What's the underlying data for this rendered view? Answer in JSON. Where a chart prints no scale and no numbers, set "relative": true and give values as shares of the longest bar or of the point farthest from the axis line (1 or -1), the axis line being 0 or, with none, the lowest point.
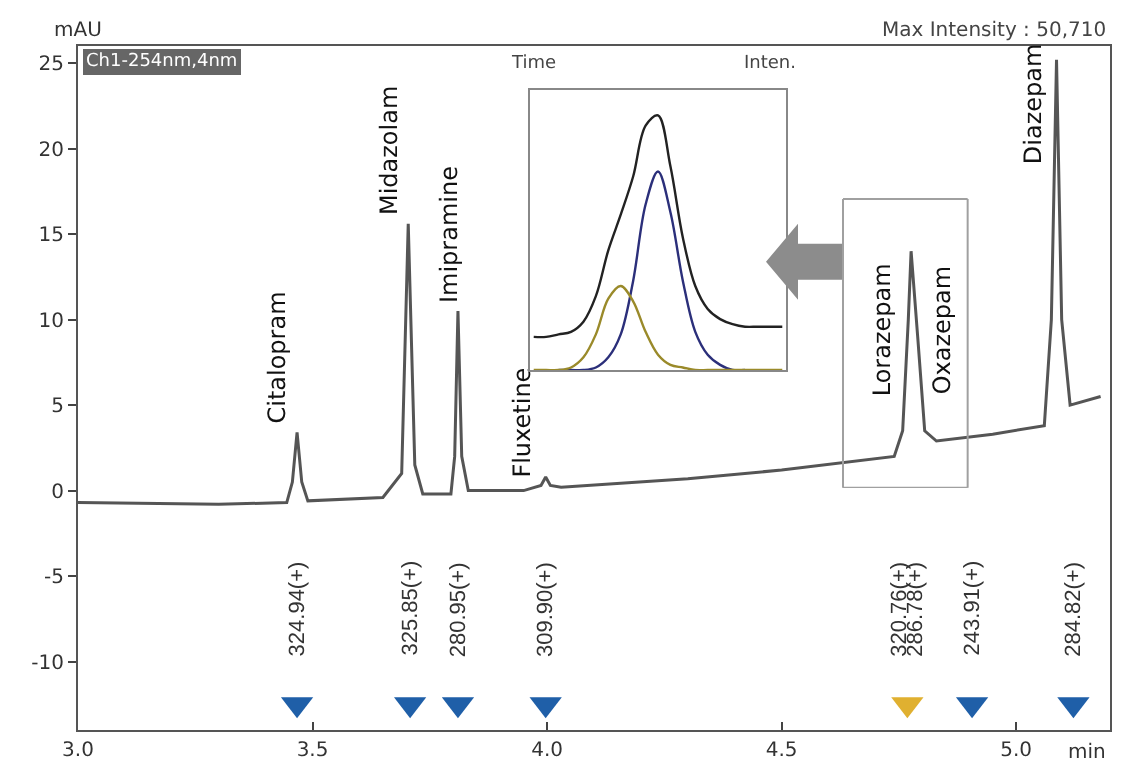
{
  "chart_data": [
    {
      "type": "line",
      "ylabel": "mAU",
      "xlabel": "min",
      "xlim": [
        3.0,
        5.2
      ],
      "xticks": [
        {
          "value": 3.0,
          "label": "3.0"
        },
        3.5,
        {
          "value": 4.0,
          "label": "4.0"
        },
        4.5,
        {
          "value": 5.0,
          "label": "5.0"
        }
      ],
      "ylim": [
        -14,
        26
      ],
      "yticks": [
        -10,
        -5,
        0,
        5,
        10,
        15,
        20,
        25
      ],
      "grid": false,
      "annotations": [
        "Ch1-254nm,4nm",
        "Time",
        "Inten.",
        "Max Intensity : 50,710",
        {
          "text": "Citalopram",
          "x": 3.467,
          "y": 3.4
        },
        {
          "text": "Midazolam",
          "x": 3.704,
          "y": 15.6
        },
        {
          "text": "Imipramine",
          "x": 3.81,
          "y": 10.5
        },
        {
          "text": "Fluxetine",
          "x": 3.997,
          "y": 0.8
        },
        {
          "text": "Lorazepam",
          "x": 4.776,
          "y": 14.0
        },
        {
          "text": "Oxazepam",
          "x": 4.776,
          "y": 14.0
        },
        {
          "text": "Diazepam",
          "x": 5.086,
          "y": 25.2
        },
        {
          "text": "324.94(+)",
          "x": 3.467,
          "y": -12.5
        },
        {
          "text": "325.85(+)",
          "x": 3.708,
          "y": -12.5
        },
        {
          "text": "280.95(+)",
          "x": 3.81,
          "y": -12.5
        },
        {
          "text": "309.90(+)",
          "x": 3.997,
          "y": -12.5
        },
        {
          "text": "320.76(+)",
          "x": 4.768,
          "y": -12.5
        },
        {
          "text": "286.78(+)",
          "x": 4.768,
          "y": -12.5
        },
        {
          "text": "243.91(+)",
          "x": 4.906,
          "y": -12.5
        },
        {
          "text": "284.82(+)",
          "x": 5.122,
          "y": -12.5
        }
      ],
      "series": [
        {
          "color": "#555555",
          "marker": "none",
          "x": [
            3.0,
            3.3,
            3.445,
            3.457,
            3.467,
            3.477,
            3.49,
            3.65,
            3.69,
            3.704,
            3.718,
            3.735,
            3.795,
            3.803,
            3.81,
            3.818,
            3.832,
            3.95,
            3.987,
            3.997,
            4.007,
            4.03,
            4.3,
            4.5,
            4.74,
            4.758,
            4.77,
            4.776,
            4.79,
            4.805,
            4.83,
            4.95,
            5.06,
            5.075,
            5.086,
            5.097,
            5.115,
            5.18
          ],
          "values": [
            -0.7,
            -0.8,
            -0.7,
            0.5,
            3.4,
            0.5,
            -0.6,
            -0.4,
            1,
            15.6,
            1.5,
            -0.2,
            -0.2,
            2,
            10.5,
            2,
            0,
            0,
            0.3,
            0.8,
            0.3,
            0.2,
            0.7,
            1.2,
            2.0,
            3.5,
            10,
            14.0,
            9,
            3.5,
            2.9,
            3.3,
            3.8,
            10,
            25.2,
            10,
            5.0,
            5.5
          ]
        },
        {
          "type": "scatter",
          "marker": "triangle",
          "x": [
            3.467,
            3.708,
            3.81,
            3.997,
            4.768,
            4.906,
            5.122
          ],
          "values": [
            -12.5,
            -12.5,
            -12.5,
            -12.5,
            -12.5,
            -12.5,
            -12.5
          ],
          "colors": [
            "#1f5fa8",
            "#1f5fa8",
            "#1f5fa8",
            "#1f5fa8",
            "#e0b030",
            "#1f5fa8",
            "#1f5fa8"
          ]
        }
      ]
    },
    {
      "type": "line",
      "relative": true,
      "categories": [
        null,
        null,
        null,
        null,
        null,
        null,
        null,
        null,
        null,
        null,
        null,
        null,
        null,
        null,
        null,
        null,
        null,
        null,
        null,
        null,
        null
      ],
      "series": [
        {
          "color": "#222222",
          "values": [
            0.13,
            0.13,
            0.14,
            0.15,
            0.19,
            0.29,
            0.47,
            0.61,
            0.76,
            0.96,
            1.0,
            0.8,
            0.52,
            0.33,
            0.24,
            0.2,
            0.18,
            0.17,
            0.17,
            0.17,
            0.17
          ]
        },
        {
          "color": "#2b2f7a",
          "values": [
            null,
            null,
            0,
            0,
            0,
            0.01,
            0.05,
            0.14,
            0.35,
            0.65,
            0.78,
            0.62,
            0.35,
            0.15,
            0.06,
            0.02,
            0,
            0,
            null,
            null,
            null
          ]
        },
        {
          "color": "#9a8a2a",
          "values": [
            0,
            0,
            0,
            0.01,
            0.05,
            0.14,
            0.28,
            0.33,
            0.27,
            0.15,
            0.06,
            0.02,
            0.01,
            0,
            0,
            0,
            0,
            0,
            0,
            0,
            0
          ]
        }
      ]
    }
  ]
}
